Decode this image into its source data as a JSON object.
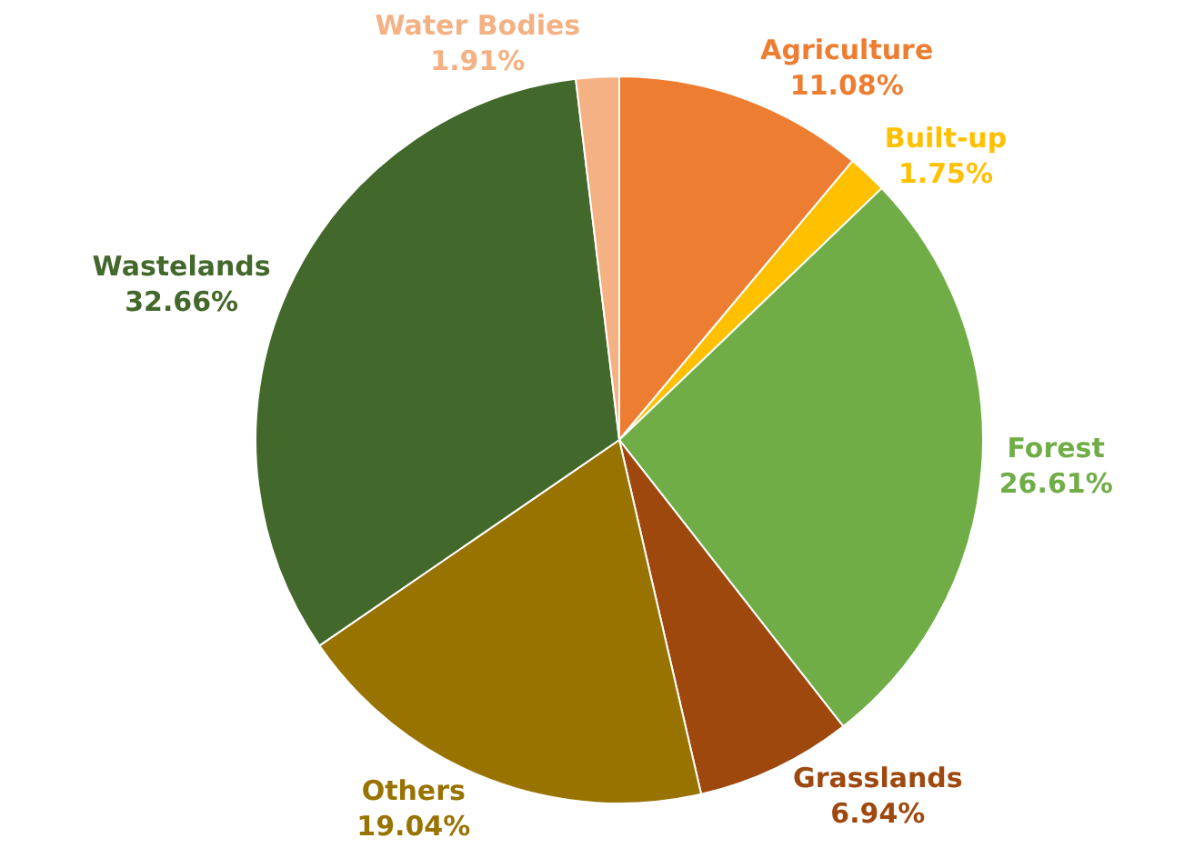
{
  "chart_data": {
    "type": "pie",
    "categories": [
      "Agriculture",
      "Built-up",
      "Forest",
      "Grasslands",
      "Others",
      "Wastelands",
      "Water Bodies"
    ],
    "values": [
      11.08,
      1.75,
      26.61,
      6.94,
      19.04,
      32.66,
      1.91
    ],
    "value_labels": [
      "11.08%",
      "1.75%",
      "26.61%",
      "6.94%",
      "19.04%",
      "32.66%",
      "1.91%"
    ],
    "colors": [
      "#ed7d31",
      "#ffc000",
      "#70ad47",
      "#9e480e",
      "#997300",
      "#43682b",
      "#f4b183"
    ],
    "legend": false
  }
}
